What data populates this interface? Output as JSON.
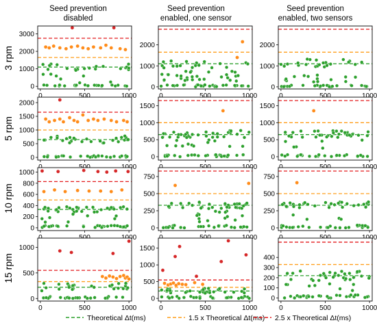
{
  "figure": {
    "column_titles": [
      [
        "Seed prevention",
        "disabled"
      ],
      [
        "Seed prevention",
        "enabled, one sensor"
      ],
      [
        "Seed prevention",
        "enabled, two sensors"
      ]
    ],
    "row_titles": [
      "3 rpm",
      "5 rpm",
      "10 rpm",
      "15 rpm"
    ],
    "legend": [
      {
        "label": "Theoretical Δt(ms)",
        "color": "#2ca02c"
      },
      {
        "label": "1.5 x Theoretical Δt(ms)",
        "color": "#ff9f1c"
      },
      {
        "label": "2.5 x Theoretical Δt(ms)",
        "color": "#e31a1c"
      }
    ],
    "colors": {
      "green": "#2ca02c",
      "orange": "#ff8c1a",
      "red": "#d62728"
    }
  },
  "chart_data": [
    {
      "row": "3 rpm",
      "column": "disabled",
      "type": "scatter",
      "xlim": [
        -30,
        1030
      ],
      "ylim": [
        -150,
        3450
      ],
      "xticks": [
        "0",
        "500",
        "1000"
      ],
      "yticks": [
        0,
        1000,
        2000,
        3000
      ],
      "hlines": {
        "theoretical": 1100,
        "x1_5": 1650,
        "x2_5": 2750
      },
      "clusters": [
        {
          "color": "green",
          "band": [
            900,
            1300
          ],
          "n": 20,
          "edge": "right"
        },
        {
          "color": "green",
          "band": [
            0,
            80
          ],
          "n": 24
        },
        {
          "color": "green",
          "band": [
            200,
            700
          ],
          "n": 7
        }
      ],
      "points": [
        {
          "x": 60,
          "y": 2250,
          "c": "orange"
        },
        {
          "x": 100,
          "y": 2200,
          "c": "orange"
        },
        {
          "x": 150,
          "y": 2300,
          "c": "orange"
        },
        {
          "x": 220,
          "y": 2200,
          "c": "orange"
        },
        {
          "x": 290,
          "y": 2150,
          "c": "orange"
        },
        {
          "x": 350,
          "y": 2250,
          "c": "orange"
        },
        {
          "x": 420,
          "y": 2300,
          "c": "orange"
        },
        {
          "x": 480,
          "y": 2200,
          "c": "orange"
        },
        {
          "x": 540,
          "y": 2150,
          "c": "orange"
        },
        {
          "x": 600,
          "y": 2250,
          "c": "orange"
        },
        {
          "x": 680,
          "y": 2200,
          "c": "orange"
        },
        {
          "x": 740,
          "y": 2350,
          "c": "orange"
        },
        {
          "x": 800,
          "y": 2200,
          "c": "orange"
        },
        {
          "x": 900,
          "y": 2150,
          "c": "orange"
        },
        {
          "x": 960,
          "y": 2100,
          "c": "orange"
        },
        {
          "x": 360,
          "y": 3350,
          "c": "red"
        },
        {
          "x": 830,
          "y": 3350,
          "c": "red"
        }
      ]
    },
    {
      "row": "3 rpm",
      "column": "one sensor",
      "type": "scatter",
      "xlim": [
        -30,
        1030
      ],
      "ylim": [
        -100,
        2900
      ],
      "xticks": [
        "0",
        "500",
        "1000"
      ],
      "yticks": [
        0,
        1000,
        2000
      ],
      "hlines": {
        "theoretical": 1100,
        "x1_5": 1650,
        "x2_5": 2750
      },
      "clusters": [
        {
          "color": "green",
          "band": [
            900,
            1250
          ],
          "n": 18
        },
        {
          "color": "green",
          "band": [
            0,
            100
          ],
          "n": 28
        },
        {
          "color": "green",
          "band": [
            250,
            750
          ],
          "n": 30
        }
      ],
      "points": [
        {
          "x": 920,
          "y": 2150,
          "c": "orange"
        },
        {
          "x": 860,
          "y": 1400,
          "c": "orange"
        }
      ]
    },
    {
      "row": "3 rpm",
      "column": "two sensors",
      "type": "scatter",
      "xlim": [
        -30,
        1030
      ],
      "ylim": [
        -100,
        2900
      ],
      "xticks": [
        "0",
        "500",
        "1000"
      ],
      "yticks": [
        0,
        1000,
        2000
      ],
      "hlines": {
        "theoretical": 1100,
        "x1_5": 1650,
        "x2_5": 2750
      },
      "clusters": [
        {
          "color": "green",
          "band": [
            950,
            1350
          ],
          "n": 22
        },
        {
          "color": "green",
          "band": [
            0,
            80
          ],
          "n": 26
        },
        {
          "color": "green",
          "band": [
            150,
            650
          ],
          "n": 14
        }
      ],
      "points": []
    },
    {
      "row": "5 rpm",
      "column": "disabled",
      "type": "scatter",
      "xlim": [
        -30,
        1030
      ],
      "ylim": [
        -100,
        2200
      ],
      "xticks": [
        "0",
        "500",
        "1000"
      ],
      "yticks": [
        0,
        500,
        1000,
        1500,
        2000
      ],
      "hlines": {
        "theoretical": 650,
        "x1_5": 1000,
        "x2_5": 1650
      },
      "clusters": [
        {
          "color": "green",
          "band": [
            520,
            800
          ],
          "n": 26
        },
        {
          "color": "green",
          "band": [
            0,
            60
          ],
          "n": 26
        }
      ],
      "points": [
        {
          "x": 60,
          "y": 1400,
          "c": "orange"
        },
        {
          "x": 100,
          "y": 1300,
          "c": "orange"
        },
        {
          "x": 160,
          "y": 1350,
          "c": "orange"
        },
        {
          "x": 220,
          "y": 1400,
          "c": "orange"
        },
        {
          "x": 260,
          "y": 1300,
          "c": "orange"
        },
        {
          "x": 330,
          "y": 1450,
          "c": "orange"
        },
        {
          "x": 380,
          "y": 1350,
          "c": "orange"
        },
        {
          "x": 420,
          "y": 1300,
          "c": "orange"
        },
        {
          "x": 480,
          "y": 1550,
          "c": "orange"
        },
        {
          "x": 540,
          "y": 1350,
          "c": "orange"
        },
        {
          "x": 600,
          "y": 1400,
          "c": "orange"
        },
        {
          "x": 650,
          "y": 1350,
          "c": "orange"
        },
        {
          "x": 720,
          "y": 1400,
          "c": "orange"
        },
        {
          "x": 800,
          "y": 1350,
          "c": "orange"
        },
        {
          "x": 860,
          "y": 1300,
          "c": "orange"
        },
        {
          "x": 940,
          "y": 1350,
          "c": "orange"
        },
        {
          "x": 980,
          "y": 1300,
          "c": "orange"
        },
        {
          "x": 220,
          "y": 2100,
          "c": "red"
        },
        {
          "x": 990,
          "y": 650,
          "c": "green"
        }
      ]
    },
    {
      "row": "5 rpm",
      "column": "one sensor",
      "type": "scatter",
      "xlim": [
        -30,
        1030
      ],
      "ylim": [
        -100,
        1750
      ],
      "xticks": [
        "0",
        "500",
        "1000"
      ],
      "yticks": [
        0,
        500,
        1000,
        1500
      ],
      "hlines": {
        "theoretical": 650,
        "x1_5": 1000,
        "x2_5": 1650
      },
      "clusters": [
        {
          "color": "green",
          "band": [
            550,
            780
          ],
          "n": 32
        },
        {
          "color": "green",
          "band": [
            0,
            60
          ],
          "n": 26
        },
        {
          "color": "green",
          "band": [
            300,
            500
          ],
          "n": 12
        }
      ],
      "points": [
        {
          "x": 700,
          "y": 1350,
          "c": "orange"
        }
      ]
    },
    {
      "row": "5 rpm",
      "column": "two sensors",
      "type": "scatter",
      "xlim": [
        -30,
        1030
      ],
      "ylim": [
        -100,
        1750
      ],
      "xticks": [
        "0",
        "500",
        "1000"
      ],
      "yticks": [
        0,
        500,
        1000,
        1500
      ],
      "hlines": {
        "theoretical": 650,
        "x1_5": 1000,
        "x2_5": 1650
      },
      "clusters": [
        {
          "color": "green",
          "band": [
            550,
            780
          ],
          "n": 32
        },
        {
          "color": "green",
          "band": [
            0,
            60
          ],
          "n": 26
        },
        {
          "color": "green",
          "band": [
            200,
            500
          ],
          "n": 6
        }
      ],
      "points": [
        {
          "x": 370,
          "y": 1350,
          "c": "orange"
        }
      ]
    },
    {
      "row": "10 rpm",
      "column": "disabled",
      "type": "scatter",
      "xlim": [
        -30,
        1030
      ],
      "ylim": [
        -50,
        1080
      ],
      "xticks": [
        "0",
        "500",
        "1000"
      ],
      "yticks": [
        0,
        200,
        400,
        600,
        800,
        1000
      ],
      "hlines": {
        "theoretical": 330,
        "x1_5": 500,
        "x2_5": 830
      },
      "clusters": [
        {
          "color": "green",
          "band": [
            280,
            380
          ],
          "n": 30
        },
        {
          "color": "green",
          "band": [
            0,
            40
          ],
          "n": 30
        },
        {
          "color": "green",
          "band": [
            100,
            250
          ],
          "n": 8
        }
      ],
      "points": [
        {
          "x": 40,
          "y": 650,
          "c": "orange"
        },
        {
          "x": 160,
          "y": 680,
          "c": "orange"
        },
        {
          "x": 280,
          "y": 650,
          "c": "orange"
        },
        {
          "x": 420,
          "y": 670,
          "c": "orange"
        },
        {
          "x": 550,
          "y": 660,
          "c": "orange"
        },
        {
          "x": 680,
          "y": 660,
          "c": "orange"
        },
        {
          "x": 800,
          "y": 650,
          "c": "orange"
        },
        {
          "x": 920,
          "y": 680,
          "c": "orange"
        },
        {
          "x": 20,
          "y": 1020,
          "c": "red"
        },
        {
          "x": 200,
          "y": 1010,
          "c": "red"
        },
        {
          "x": 490,
          "y": 1030,
          "c": "red"
        },
        {
          "x": 650,
          "y": 1010,
          "c": "red"
        },
        {
          "x": 750,
          "y": 1000,
          "c": "red"
        },
        {
          "x": 850,
          "y": 1020,
          "c": "red"
        },
        {
          "x": 990,
          "y": 1010,
          "c": "red"
        }
      ]
    },
    {
      "row": "10 rpm",
      "column": "one sensor",
      "type": "scatter",
      "xlim": [
        -30,
        1030
      ],
      "ylim": [
        -40,
        880
      ],
      "xticks": [
        "0",
        "500",
        "1000"
      ],
      "yticks": [
        0,
        250,
        500,
        750
      ],
      "hlines": {
        "theoretical": 330,
        "x1_5": 500,
        "x2_5": 830
      },
      "clusters": [
        {
          "color": "green",
          "band": [
            280,
            380
          ],
          "n": 30
        },
        {
          "color": "green",
          "band": [
            0,
            40
          ],
          "n": 28
        },
        {
          "color": "green",
          "band": [
            80,
            250
          ],
          "n": 14
        }
      ],
      "points": [
        {
          "x": 160,
          "y": 620,
          "c": "orange"
        },
        {
          "x": 990,
          "y": 650,
          "c": "orange"
        }
      ]
    },
    {
      "row": "10 rpm",
      "column": "two sensors",
      "type": "scatter",
      "xlim": [
        -30,
        1030
      ],
      "ylim": [
        -40,
        880
      ],
      "xticks": [
        "0",
        "500",
        "1000"
      ],
      "yticks": [
        0,
        250,
        500,
        750
      ],
      "hlines": {
        "theoretical": 330,
        "x1_5": 500,
        "x2_5": 830
      },
      "clusters": [
        {
          "color": "green",
          "band": [
            290,
            380
          ],
          "n": 30
        },
        {
          "color": "green",
          "band": [
            0,
            40
          ],
          "n": 28
        },
        {
          "color": "green",
          "band": [
            100,
            200
          ],
          "n": 4
        }
      ],
      "points": [
        {
          "x": 180,
          "y": 660,
          "c": "orange"
        }
      ]
    },
    {
      "row": "15 rpm",
      "column": "disabled",
      "type": "scatter",
      "xlim": [
        -30,
        1030
      ],
      "ylim": [
        -50,
        1180
      ],
      "xticks": [
        "0",
        "500",
        "1000"
      ],
      "yticks": [
        0,
        500,
        1000
      ],
      "hlines": {
        "theoretical": 220,
        "x1_5": 330,
        "x2_5": 550
      },
      "clusters": [
        {
          "color": "green",
          "band": [
            150,
            300
          ],
          "n": 26,
          "edge": "right"
        },
        {
          "color": "green",
          "band": [
            0,
            40
          ],
          "n": 26
        }
      ],
      "points": [
        {
          "x": 700,
          "y": 430,
          "c": "orange"
        },
        {
          "x": 740,
          "y": 400,
          "c": "orange"
        },
        {
          "x": 780,
          "y": 440,
          "c": "orange"
        },
        {
          "x": 820,
          "y": 420,
          "c": "orange"
        },
        {
          "x": 860,
          "y": 390,
          "c": "orange"
        },
        {
          "x": 900,
          "y": 430,
          "c": "orange"
        },
        {
          "x": 940,
          "y": 450,
          "c": "orange"
        },
        {
          "x": 960,
          "y": 400,
          "c": "orange"
        },
        {
          "x": 980,
          "y": 420,
          "c": "orange"
        },
        {
          "x": 1000,
          "y": 380,
          "c": "orange"
        },
        {
          "x": 220,
          "y": 930,
          "c": "red"
        },
        {
          "x": 350,
          "y": 900,
          "c": "red"
        },
        {
          "x": 820,
          "y": 880,
          "c": "red"
        },
        {
          "x": 1000,
          "y": 1120,
          "c": "red"
        }
      ]
    },
    {
      "row": "15 rpm",
      "column": "one sensor",
      "type": "scatter",
      "xlim": [
        -30,
        1030
      ],
      "ylim": [
        -80,
        1800
      ],
      "xticks": [
        "0",
        "500",
        "1000"
      ],
      "yticks": [
        0,
        500,
        1000,
        1500
      ],
      "hlines": {
        "theoretical": 220,
        "x1_5": 330,
        "x2_5": 550
      },
      "clusters": [
        {
          "color": "green",
          "band": [
            150,
            300
          ],
          "n": 30
        },
        {
          "color": "green",
          "band": [
            0,
            60
          ],
          "n": 26
        }
      ],
      "points": [
        {
          "x": 40,
          "y": 450,
          "c": "orange"
        },
        {
          "x": 80,
          "y": 400,
          "c": "orange"
        },
        {
          "x": 110,
          "y": 430,
          "c": "orange"
        },
        {
          "x": 140,
          "y": 460,
          "c": "orange"
        },
        {
          "x": 170,
          "y": 390,
          "c": "orange"
        },
        {
          "x": 200,
          "y": 440,
          "c": "orange"
        },
        {
          "x": 240,
          "y": 420,
          "c": "orange"
        },
        {
          "x": 280,
          "y": 410,
          "c": "orange"
        },
        {
          "x": 380,
          "y": 470,
          "c": "orange"
        },
        {
          "x": 470,
          "y": 420,
          "c": "orange"
        },
        {
          "x": 20,
          "y": 840,
          "c": "red"
        },
        {
          "x": 160,
          "y": 1250,
          "c": "red"
        },
        {
          "x": 210,
          "y": 1550,
          "c": "red"
        },
        {
          "x": 400,
          "y": 660,
          "c": "red"
        },
        {
          "x": 680,
          "y": 1100,
          "c": "red"
        },
        {
          "x": 760,
          "y": 1720,
          "c": "red"
        },
        {
          "x": 960,
          "y": 1300,
          "c": "red"
        }
      ]
    },
    {
      "row": "15 rpm",
      "column": "two sensors",
      "type": "scatter",
      "xlim": [
        -30,
        1030
      ],
      "ylim": [
        -30,
        590
      ],
      "xticks": [
        "0",
        "500",
        "1000"
      ],
      "yticks": [
        0,
        100,
        200,
        300,
        400
      ],
      "hlines": {
        "theoretical": 220,
        "x1_5": 330,
        "x2_5": 550
      },
      "clusters": [
        {
          "color": "green",
          "band": [
            170,
            270
          ],
          "n": 32
        },
        {
          "color": "green",
          "band": [
            0,
            30
          ],
          "n": 28
        },
        {
          "color": "green",
          "band": [
            50,
            150
          ],
          "n": 8
        }
      ],
      "points": []
    }
  ]
}
